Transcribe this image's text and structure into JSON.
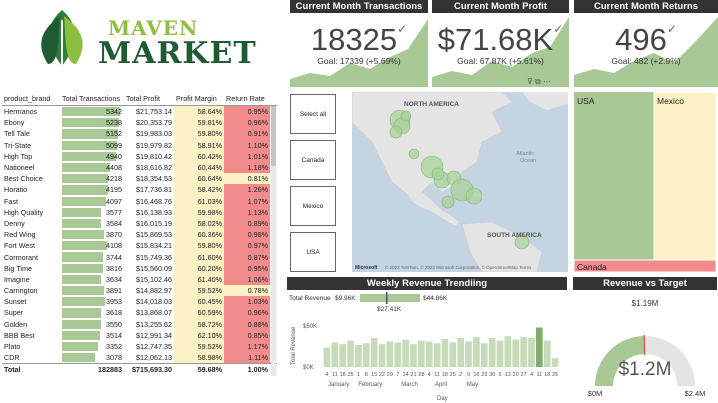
{
  "logo": {
    "line1": "MAVEN",
    "line2": "MARKET"
  },
  "table": {
    "headers": [
      "product_brand",
      "Total Transactions",
      "Total Profit",
      "Profit Margin",
      "Return Rate"
    ],
    "rows": [
      {
        "brand": "Hermanos",
        "tx": "5342",
        "profit": "$21,753.14",
        "margin": "58.64%",
        "ret": "0.95%",
        "tx_val": 5342,
        "ret_flag": "high"
      },
      {
        "brand": "Ebony",
        "tx": "5238",
        "profit": "$20,353.79",
        "margin": "59.81%",
        "ret": "0.96%",
        "tx_val": 5238,
        "ret_flag": "high"
      },
      {
        "brand": "Tell Tale",
        "tx": "5152",
        "profit": "$19,983.03",
        "margin": "59.80%",
        "ret": "0.91%",
        "tx_val": 5152,
        "ret_flag": "high"
      },
      {
        "brand": "Tri-State",
        "tx": "5099",
        "profit": "$19,979.82",
        "margin": "58.91%",
        "ret": "1.10%",
        "tx_val": 5099,
        "ret_flag": "high"
      },
      {
        "brand": "High Top",
        "tx": "4940",
        "profit": "$19,810.42",
        "margin": "60.42%",
        "ret": "1.01%",
        "tx_val": 4940,
        "ret_flag": "high"
      },
      {
        "brand": "Nationeel",
        "tx": "4408",
        "profit": "$18,616.82",
        "margin": "60.44%",
        "ret": "1.18%",
        "tx_val": 4408,
        "ret_flag": "high"
      },
      {
        "brand": "Best Choice",
        "tx": "4218",
        "profit": "$18,354.53",
        "margin": "60.64%",
        "ret": "0.81%",
        "tx_val": 4218,
        "ret_flag": "low"
      },
      {
        "brand": "Horatio",
        "tx": "4195",
        "profit": "$17,736.81",
        "margin": "58.42%",
        "ret": "1.26%",
        "tx_val": 4195,
        "ret_flag": "high"
      },
      {
        "brand": "Fast",
        "tx": "4097",
        "profit": "$16,468.76",
        "margin": "61.03%",
        "ret": "1.07%",
        "tx_val": 4097,
        "ret_flag": "high"
      },
      {
        "brand": "High Quality",
        "tx": "3577",
        "profit": "$16,138.93",
        "margin": "59.98%",
        "ret": "1.13%",
        "tx_val": 3577,
        "ret_flag": "high"
      },
      {
        "brand": "Denny",
        "tx": "3584",
        "profit": "$16,015.19",
        "margin": "58.02%",
        "ret": "0.89%",
        "tx_val": 3584,
        "ret_flag": "high"
      },
      {
        "brand": "Red Wing",
        "tx": "3870",
        "profit": "$15,869.53",
        "margin": "60.36%",
        "ret": "0.98%",
        "tx_val": 3870,
        "ret_flag": "high"
      },
      {
        "brand": "Fort West",
        "tx": "4108",
        "profit": "$15,834.21",
        "tx_val": 4108,
        "margin": "59.80%",
        "ret": "0.97%",
        "ret_flag": "high"
      },
      {
        "brand": "Cormorant",
        "tx": "3744",
        "profit": "$15,749.36",
        "margin": "61.60%",
        "ret": "0.87%",
        "tx_val": 3744,
        "ret_flag": "high"
      },
      {
        "brand": "Big Time",
        "tx": "3816",
        "profit": "$15,560.09",
        "margin": "60.20%",
        "ret": "0.95%",
        "tx_val": 3816,
        "ret_flag": "high"
      },
      {
        "brand": "Imagine",
        "tx": "3634",
        "profit": "$15,102.46",
        "margin": "61.40%",
        "ret": "1.06%",
        "tx_val": 3634,
        "ret_flag": "high"
      },
      {
        "brand": "Carrington",
        "tx": "3891",
        "profit": "$14,882.97",
        "margin": "59.52%",
        "ret": "0.78%",
        "tx_val": 3891,
        "ret_flag": "low"
      },
      {
        "brand": "Sunset",
        "tx": "3953",
        "profit": "$14,018.03",
        "margin": "60.45%",
        "ret": "1.03%",
        "tx_val": 3953,
        "ret_flag": "high"
      },
      {
        "brand": "Super",
        "tx": "3618",
        "profit": "$13,868.07",
        "margin": "60.59%",
        "ret": "0.96%",
        "tx_val": 3618,
        "ret_flag": "high"
      },
      {
        "brand": "Golden",
        "tx": "3550",
        "profit": "$13,255.62",
        "margin": "58.72%",
        "ret": "0.88%",
        "tx_val": 3550,
        "ret_flag": "high"
      },
      {
        "brand": "BBB Best",
        "tx": "3514",
        "profit": "$12,991.34",
        "margin": "62.10%",
        "ret": "0.85%",
        "tx_val": 3514,
        "ret_flag": "high"
      },
      {
        "brand": "Plato",
        "tx": "3352",
        "profit": "$12,747.35",
        "margin": "59.52%",
        "ret": "1.17%",
        "tx_val": 3352,
        "ret_flag": "high"
      },
      {
        "brand": "CDR",
        "tx": "3078",
        "profit": "$12,062.13",
        "margin": "58.98%",
        "ret": "1.11%",
        "tx_val": 3078,
        "ret_flag": "high"
      }
    ],
    "total": {
      "label": "Total",
      "tx": "182883",
      "profit": "$715,693.30",
      "margin": "59.68%",
      "ret": "1.00%"
    }
  },
  "kpis": [
    {
      "title": "Current Month Transactions",
      "value": "18325",
      "goal": "Goal: 17339 (+5.69%)"
    },
    {
      "title": "Current Month Profit",
      "value": "$71.68K",
      "goal": "Goal: 67.87K (+5.61%)"
    },
    {
      "title": "Current Month Returns",
      "value": "496",
      "goal": "Goal: 482 (+2.9%)"
    }
  ],
  "slicer": {
    "options": [
      "Select all",
      "Canada",
      "Mexico",
      "USA"
    ]
  },
  "map": {
    "labels": {
      "north_america": "NORTH AMERICA",
      "south_america": "SOUTH AMERICA",
      "atlantic": "Atlantic",
      "ocean": "Ocean"
    },
    "credit": "© 2023 TomTom, © 2023 Microsoft Corporation, © OpenStreetMap  Terms",
    "brand": "Microsoft"
  },
  "treemap": {
    "labels": [
      "USA",
      "Mexico",
      "Canada"
    ]
  },
  "weekly": {
    "title": "Weekly Revenue Trendiing",
    "ylabel": "Total Revenue",
    "xlabel": "Day",
    "min_label": "$9.96K",
    "max_label": "$44.86K",
    "marker_label": "$27.41K",
    "y_tick_top": "$50K",
    "y_tick_bottom": "$0K",
    "day_ticks": [
      "4",
      "11",
      "18",
      "25",
      "1",
      "8",
      "15",
      "22",
      "29",
      "7",
      "14",
      "21",
      "28",
      "4",
      "11",
      "18",
      "25",
      "2",
      "9",
      "16",
      "23",
      "30",
      "6",
      "13",
      "20",
      "27",
      "4",
      "11",
      "18",
      "25"
    ],
    "months": [
      "January",
      "February",
      "March",
      "April",
      "May"
    ]
  },
  "gauge": {
    "title": "Revenue vs Target",
    "value": "$1.2M",
    "target": "$1.19M",
    "min": "$0M",
    "max": "$2.4M",
    "fraction": 0.5,
    "target_fraction": 0.496
  },
  "colors": {
    "green": "#a8c896",
    "dark_green": "#1e5a32",
    "accent_green": "#8cbf3f",
    "yellow": "#fbf1c5",
    "red": "#f28b8b",
    "header": "#333333"
  },
  "chart_data": {
    "type": "bar",
    "title": "Weekly Revenue Trendiing",
    "ylabel": "Total Revenue",
    "xlabel": "Day",
    "ylim": [
      0,
      50000
    ],
    "series": [
      {
        "values": [
          22000,
          28000,
          26000,
          30000,
          25000,
          27000,
          33000,
          26000,
          29000,
          28000,
          31000,
          26000,
          30000,
          29000,
          27000,
          32000,
          28000,
          33000,
          29000,
          34000,
          27000,
          33000,
          30000,
          35000,
          31000,
          34000,
          33000,
          44860,
          30000,
          9960
        ]
      }
    ]
  }
}
